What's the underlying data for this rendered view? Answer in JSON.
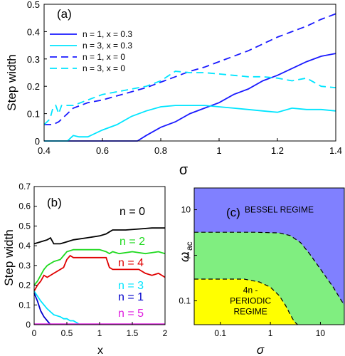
{
  "chart_data": [
    {
      "panel": "(a)",
      "type": "line",
      "xlabel": "σ",
      "ylabel": "Step width",
      "xlim": [
        0.4,
        1.4
      ],
      "ylim": [
        0,
        0.5
      ],
      "xticks": [
        "0.4",
        "0.6",
        "0.8",
        "1",
        "1.2",
        "1.4"
      ],
      "yticks": [
        "0",
        "0.1",
        "0.2",
        "0.3",
        "0.4",
        "0.5"
      ],
      "xtick_values": [
        0.4,
        0.6,
        0.8,
        1.0,
        1.2,
        1.4
      ],
      "ytick_values": [
        0,
        0.1,
        0.2,
        0.3,
        0.4,
        0.5
      ],
      "legend_position": "top-left",
      "series": [
        {
          "name": "n = 1,  x = 0.3",
          "color": "#1a1aff",
          "dash": "solid",
          "x": [
            0.4,
            0.6,
            0.72,
            0.75,
            0.8,
            0.85,
            0.9,
            0.95,
            1.0,
            1.05,
            1.1,
            1.15,
            1.2,
            1.25,
            1.3,
            1.35,
            1.4
          ],
          "y": [
            0,
            0,
            0,
            0.02,
            0.05,
            0.07,
            0.1,
            0.12,
            0.14,
            0.17,
            0.19,
            0.22,
            0.24,
            0.265,
            0.29,
            0.31,
            0.32
          ]
        },
        {
          "name": "n = 3,  x = 0.3",
          "color": "#00e5ff",
          "dash": "solid",
          "x": [
            0.4,
            0.48,
            0.5,
            0.52,
            0.55,
            0.6,
            0.65,
            0.7,
            0.75,
            0.8,
            0.85,
            0.9,
            0.95,
            1.0,
            1.05,
            1.1,
            1.15,
            1.2,
            1.25,
            1.3,
            1.35,
            1.4
          ],
          "y": [
            0,
            0,
            0.02,
            0.015,
            0.015,
            0.04,
            0.06,
            0.09,
            0.11,
            0.125,
            0.13,
            0.13,
            0.13,
            0.125,
            0.12,
            0.115,
            0.11,
            0.105,
            0.12,
            0.115,
            0.115,
            0.11
          ]
        },
        {
          "name": "n = 1,  x = 0",
          "color": "#1a1aff",
          "dash": "dashed",
          "x": [
            0.4,
            0.43,
            0.45,
            0.48,
            0.5,
            0.55,
            0.6,
            0.65,
            0.7,
            0.75,
            0.8,
            0.85,
            0.9,
            0.95,
            1.0,
            1.05,
            1.1,
            1.15,
            1.2,
            1.25,
            1.3,
            1.35,
            1.4
          ],
          "y": [
            0.06,
            0.06,
            0.07,
            0.1,
            0.12,
            0.14,
            0.15,
            0.165,
            0.18,
            0.195,
            0.215,
            0.235,
            0.255,
            0.27,
            0.29,
            0.31,
            0.33,
            0.355,
            0.38,
            0.4,
            0.42,
            0.445,
            0.465
          ]
        },
        {
          "name": "n = 3,  x = 0",
          "color": "#00e5ff",
          "dash": "dashed",
          "x": [
            0.4,
            0.42,
            0.43,
            0.44,
            0.45,
            0.46,
            0.5,
            0.55,
            0.6,
            0.65,
            0.7,
            0.75,
            0.8,
            0.85,
            0.9,
            0.95,
            1.0,
            1.05,
            1.1,
            1.15,
            1.2,
            1.25,
            1.3,
            1.35,
            1.4
          ],
          "y": [
            0.06,
            0.08,
            0.12,
            0.13,
            0.1,
            0.13,
            0.13,
            0.15,
            0.17,
            0.18,
            0.19,
            0.2,
            0.22,
            0.255,
            0.25,
            0.25,
            0.245,
            0.24,
            0.235,
            0.235,
            0.23,
            0.22,
            0.23,
            0.2,
            0.195
          ]
        }
      ]
    },
    {
      "panel": "(b)",
      "type": "line",
      "xlabel": "x",
      "ylabel": "Step width",
      "xlim": [
        0,
        2
      ],
      "ylim": [
        0,
        0.7
      ],
      "xticks": [
        "0",
        "0.5",
        "1",
        "1.5",
        "2"
      ],
      "yticks": [
        "0",
        "0.1",
        "0.2",
        "0.3",
        "0.4",
        "0.5",
        "0.6",
        "0.7"
      ],
      "xtick_values": [
        0,
        0.5,
        1,
        1.5,
        2
      ],
      "ytick_values": [
        0,
        0.1,
        0.2,
        0.3,
        0.4,
        0.5,
        0.6,
        0.7
      ],
      "series": [
        {
          "name": "n = 0",
          "color": "#000000",
          "x": [
            0,
            0.1,
            0.2,
            0.25,
            0.3,
            0.4,
            0.5,
            0.6,
            0.8,
            1.0,
            1.1,
            1.15,
            1.2,
            1.4,
            1.6,
            1.8,
            2.0
          ],
          "y": [
            0.41,
            0.42,
            0.43,
            0.44,
            0.41,
            0.41,
            0.42,
            0.43,
            0.44,
            0.45,
            0.46,
            0.47,
            0.48,
            0.48,
            0.485,
            0.49,
            0.49
          ]
        },
        {
          "name": "n = 2",
          "color": "#1fd91f",
          "x": [
            0,
            0.05,
            0.1,
            0.15,
            0.2,
            0.3,
            0.4,
            0.45,
            0.5,
            0.6,
            0.8,
            1.0,
            1.1,
            1.15,
            1.2,
            1.3,
            1.5,
            1.7,
            1.9,
            2.0
          ],
          "y": [
            0.2,
            0.22,
            0.25,
            0.28,
            0.3,
            0.32,
            0.33,
            0.35,
            0.37,
            0.38,
            0.38,
            0.38,
            0.37,
            0.36,
            0.37,
            0.36,
            0.37,
            0.36,
            0.37,
            0.36
          ]
        },
        {
          "name": "n = 4",
          "color": "#e00000",
          "x": [
            0,
            0.05,
            0.1,
            0.15,
            0.2,
            0.3,
            0.4,
            0.45,
            0.5,
            0.55,
            0.6,
            0.8,
            1.0,
            1.1,
            1.15,
            1.2,
            1.4,
            1.6,
            1.7,
            1.8,
            1.9,
            2.0
          ],
          "y": [
            0.17,
            0.2,
            0.22,
            0.25,
            0.24,
            0.26,
            0.28,
            0.29,
            0.33,
            0.35,
            0.34,
            0.34,
            0.34,
            0.34,
            0.29,
            0.28,
            0.28,
            0.28,
            0.26,
            0.25,
            0.26,
            0.24
          ]
        },
        {
          "name": "n = 3",
          "color": "#00e5ff",
          "x": [
            0,
            0.1,
            0.2,
            0.3,
            0.4,
            0.45,
            0.5,
            0.55,
            0.6,
            0.65,
            0.7
          ],
          "y": [
            0.17,
            0.12,
            0.08,
            0.05,
            0.04,
            0.03,
            0.03,
            0.02,
            0.02,
            0.01,
            0.0
          ]
        },
        {
          "name": "n = 1",
          "color": "#0000cc",
          "x": [
            0,
            0.05,
            0.1,
            0.15,
            0.2,
            0.25
          ],
          "y": [
            0.16,
            0.12,
            0.07,
            0.04,
            0.02,
            0.0
          ]
        },
        {
          "name": "n = 5",
          "color": "#e020e0",
          "x": [
            0,
            2.0
          ],
          "y": [
            0.003,
            0.003
          ]
        }
      ]
    },
    {
      "panel": "(c)",
      "type": "area",
      "xlabel": "σ",
      "ylabel": "ω",
      "ylabel_sub": "ac",
      "xscale": "log",
      "yscale": "log",
      "xlim": [
        0.03,
        30
      ],
      "ylim": [
        0.03,
        30
      ],
      "xticks": [
        "0.1",
        "1",
        "10"
      ],
      "yticks": [
        "0.1",
        "1",
        "10"
      ],
      "xtick_values": [
        0.1,
        1,
        10
      ],
      "ytick_values": [
        0.1,
        1,
        10
      ],
      "regions": [
        {
          "label_lines": [
            "BESSEL REGIME"
          ],
          "color": "#8080ff",
          "label_at": [
            1.5,
            10
          ]
        },
        {
          "label_lines": [],
          "color": "#80ee80"
        },
        {
          "label_lines": [
            "4n -",
            "PERIODIC",
            "REGIME"
          ],
          "color": "#ffff00",
          "label_at": [
            0.4,
            0.1
          ]
        }
      ],
      "upper_boundary": {
        "x": [
          0.03,
          0.5,
          1.5,
          2.5,
          4,
          6,
          10,
          18,
          30
        ],
        "y": [
          3.2,
          3.2,
          3.1,
          2.7,
          1.9,
          1.1,
          0.5,
          0.2,
          0.08
        ]
      },
      "lower_boundary": {
        "x": [
          0.03,
          0.3,
          0.6,
          1.0,
          1.5,
          2.0,
          2.5,
          3.0,
          3.5
        ],
        "y": [
          0.3,
          0.3,
          0.26,
          0.2,
          0.13,
          0.08,
          0.05,
          0.035,
          0.03
        ]
      }
    }
  ],
  "legend_a": [
    {
      "label": "n = 1,  x = 0.3"
    },
    {
      "label": "n = 3,  x = 0.3"
    },
    {
      "label": "n = 1,  x = 0"
    },
    {
      "label": "n = 3,  x = 0"
    }
  ]
}
